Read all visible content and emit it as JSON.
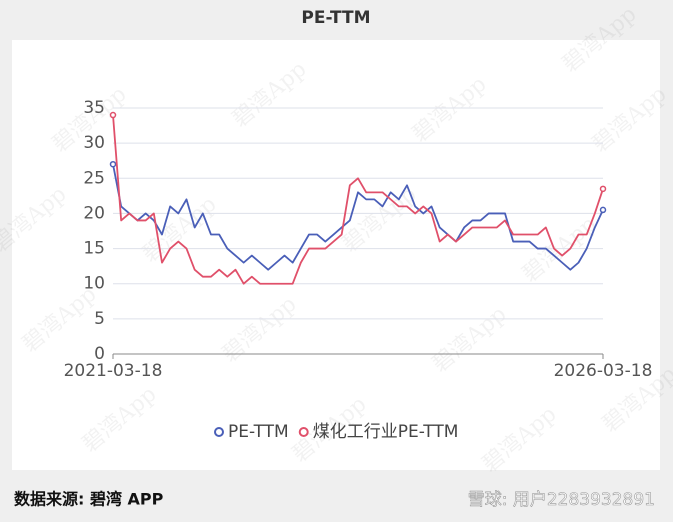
{
  "chart_data": {
    "type": "line",
    "title": "PE-TTM",
    "categories": [
      "2021-03-18",
      null,
      null,
      null,
      null,
      null,
      null,
      null,
      null,
      null,
      null,
      null,
      null,
      null,
      null,
      null,
      null,
      null,
      null,
      null,
      null,
      null,
      null,
      null,
      null,
      null,
      null,
      null,
      null,
      null,
      null,
      null,
      null,
      null,
      null,
      null,
      null,
      null,
      null,
      null,
      null,
      null,
      null,
      null,
      null,
      null,
      null,
      null,
      null,
      null,
      null,
      null,
      null,
      null,
      null,
      null,
      null,
      null,
      null,
      null,
      "2026-03-18"
    ],
    "series": [
      {
        "name": "PE-TTM",
        "color": "#4a5fb8",
        "values": [
          27,
          21,
          20,
          19,
          20,
          19,
          17,
          21,
          20,
          22,
          18,
          20,
          17,
          17,
          15,
          14,
          13,
          14,
          13,
          12,
          13,
          14,
          13,
          15,
          17,
          17,
          16,
          17,
          18,
          19,
          23,
          22,
          22,
          21,
          23,
          22,
          24,
          21,
          20,
          21,
          18,
          17,
          16,
          18,
          19,
          19,
          20,
          20,
          20,
          16,
          16,
          16,
          15,
          15,
          14,
          13,
          12,
          13,
          15,
          18,
          20.5
        ]
      },
      {
        "name": "煤化工行业PE-TTM",
        "color": "#e0506a",
        "values": [
          34,
          19,
          20,
          19,
          19,
          20,
          13,
          15,
          16,
          15,
          12,
          11,
          11,
          12,
          11,
          12,
          10,
          11,
          10,
          10,
          10,
          10,
          10,
          13,
          15,
          15,
          15,
          16,
          17,
          24,
          25,
          23,
          23,
          23,
          22,
          21,
          21,
          20,
          21,
          20,
          16,
          17,
          16,
          17,
          18,
          18,
          18,
          18,
          19,
          17,
          17,
          17,
          17,
          18,
          15,
          14,
          15,
          17,
          17,
          20,
          23.5
        ]
      }
    ],
    "ylim": [
      0,
      35
    ],
    "yticks": [
      0,
      5,
      10,
      15,
      20,
      25,
      30,
      35
    ],
    "grid": true,
    "legend": "bottom"
  },
  "source": "数据来源: 碧湾 APP",
  "watermark": "碧湾App",
  "credit": "雪球: 用户2283932891"
}
